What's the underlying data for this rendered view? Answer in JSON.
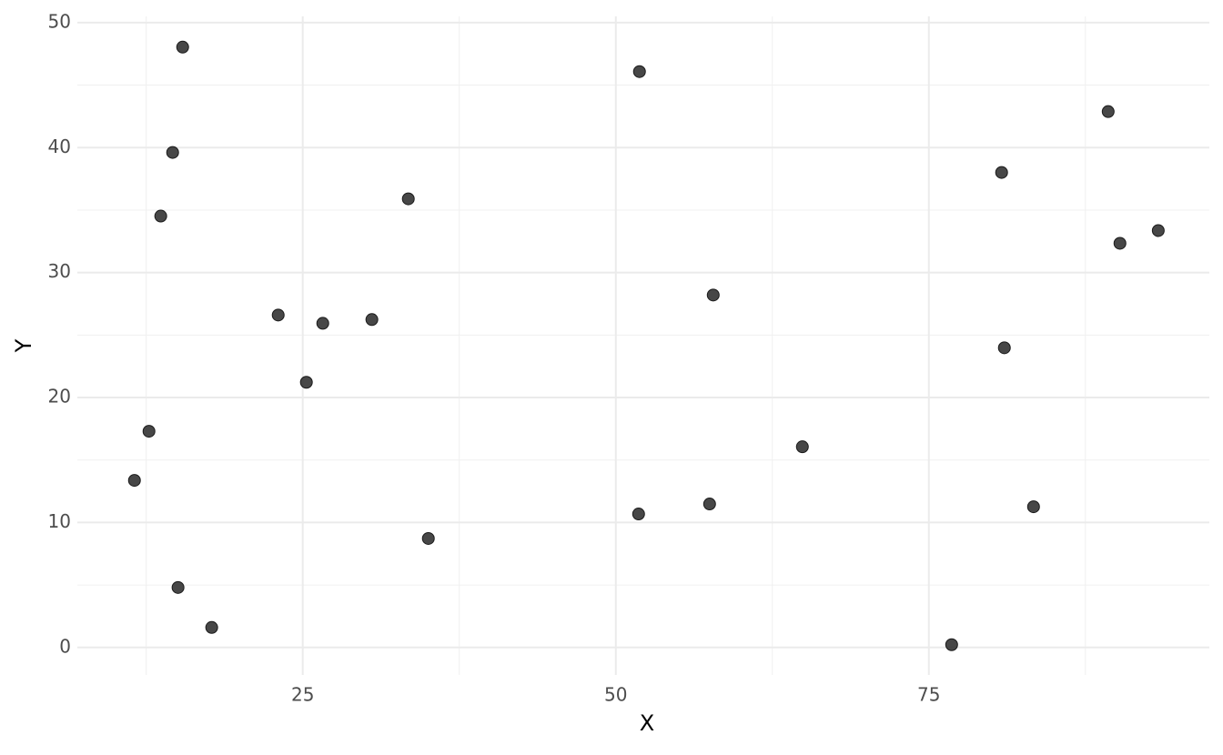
{
  "chart_data": {
    "type": "scatter",
    "x_label": "X",
    "y_label": "Y",
    "x": [
      11.56,
      12.72,
      13.66,
      14.61,
      15.04,
      15.41,
      17.73,
      23.04,
      25.29,
      26.6,
      30.52,
      33.43,
      35.03,
      51.82,
      51.89,
      57.49,
      57.78,
      64.9,
      76.82,
      80.81,
      81.03,
      83.36,
      89.32,
      90.26,
      93.32
    ],
    "y": [
      13.37,
      17.3,
      34.52,
      39.61,
      4.8,
      48.04,
      1.6,
      26.6,
      21.22,
      25.94,
      26.24,
      35.9,
      8.72,
      10.68,
      46.08,
      11.48,
      28.2,
      16.06,
      0.22,
      38.01,
      23.98,
      11.26,
      42.88,
      32.34,
      33.36
    ],
    "color": "#333333",
    "xlim": [
      7.0,
      97.4
    ],
    "ylim": [
      -2.2,
      50.5
    ],
    "xticks": [
      25,
      50,
      75
    ],
    "yticks": [
      0,
      10,
      20,
      30,
      40,
      50
    ],
    "xminorticks": [
      12.5,
      37.5,
      62.5,
      87.5
    ],
    "yminorticks": [
      5,
      15,
      25,
      35,
      45
    ],
    "grid": true
  }
}
